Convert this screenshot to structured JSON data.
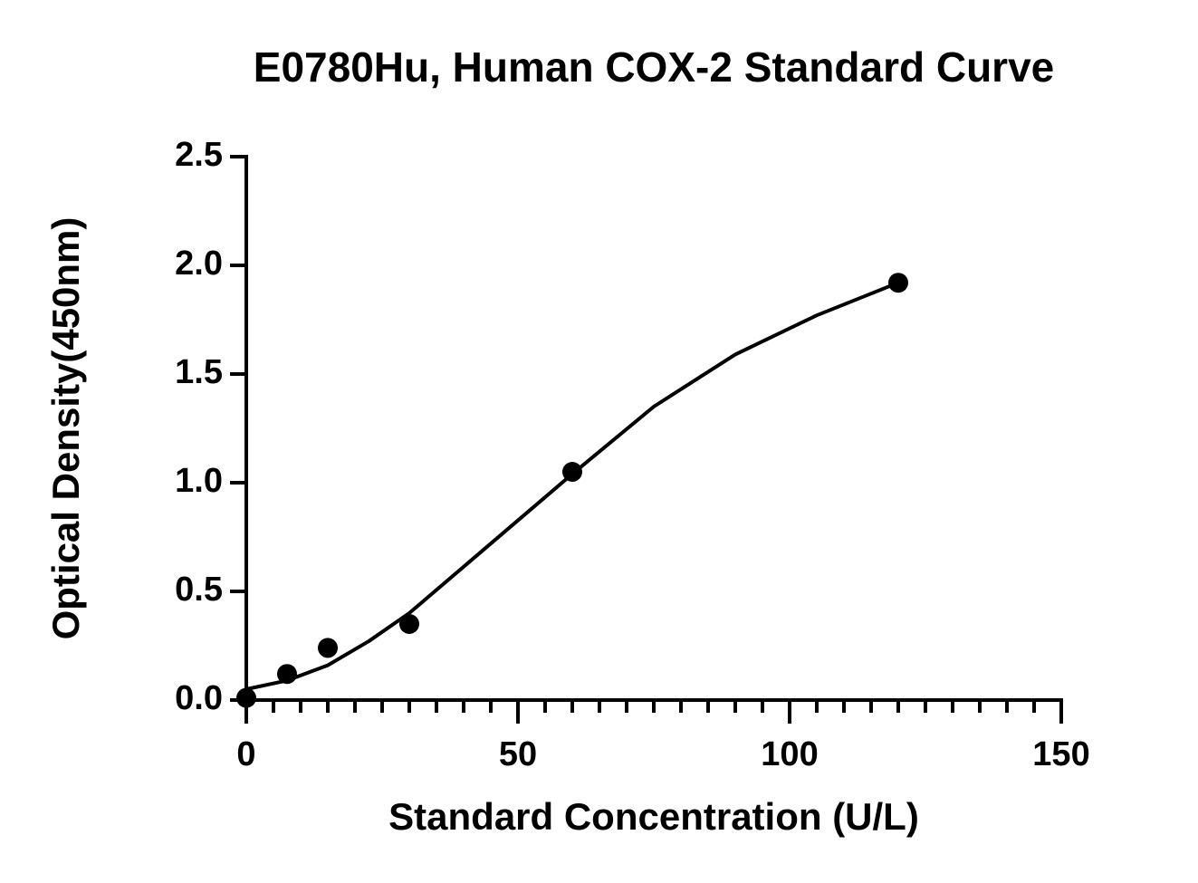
{
  "chart_data": {
    "type": "scatter",
    "title": "E0780Hu, Human COX-2 Standard Curve",
    "x_label": "Standard Concentration (U/L)",
    "y_label": "Optical Density(450nm)",
    "series": [
      {
        "type": "scatter",
        "color": "#000000",
        "x": [
          0,
          7.5,
          15,
          30,
          60,
          120
        ],
        "values": [
          0.01,
          0.12,
          0.24,
          0.35,
          1.05,
          1.92
        ]
      },
      {
        "type": "line",
        "color": "#000000",
        "x": [
          0,
          7.5,
          15,
          22.5,
          30,
          45,
          60,
          75,
          90,
          105,
          120
        ],
        "values": [
          0.05,
          0.09,
          0.16,
          0.27,
          0.4,
          0.72,
          1.04,
          1.35,
          1.59,
          1.77,
          1.92
        ]
      }
    ],
    "xlim": [
      0,
      150
    ],
    "ylim": [
      0,
      2.5
    ],
    "xticks": [
      0,
      50,
      100,
      150
    ],
    "xminorticks": [
      5,
      10,
      15,
      20,
      25,
      30,
      35,
      40,
      45,
      55,
      60,
      65,
      70,
      75,
      80,
      85,
      90,
      95,
      105,
      110,
      115,
      120,
      125,
      130,
      135,
      140,
      145
    ],
    "yticks": [
      {
        "value": 0,
        "label": "0.0"
      },
      0.5,
      {
        "value": 1,
        "label": "1.0"
      },
      1.5,
      {
        "value": 2,
        "label": "2.0"
      },
      2.5
    ]
  }
}
